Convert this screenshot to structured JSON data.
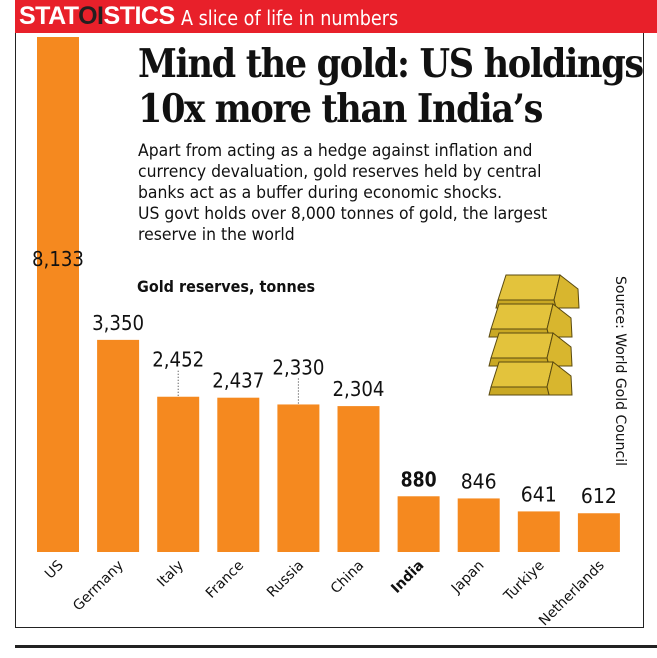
{
  "header": {
    "brand_part1": "STAT",
    "brand_part2": "OI",
    "brand_part3": "STICS",
    "tagline": "A slice of life in numbers"
  },
  "title_line1": "Mind the gold: US holdings",
  "title_line2": "10x more than India’s",
  "description": [
    "Apart from acting as a hedge against inflation and currency devaluation, gold reserves held by central banks act as a buffer during economic shocks.",
    "US govt holds over 8,000 tonnes of gold, the largest reserve in the world"
  ],
  "source": "Source: World Gold Council",
  "colors": {
    "header": "#e8202a",
    "bar": "#f5891f",
    "gold": "#e3c33c"
  },
  "chart_data": {
    "type": "bar",
    "title": "Gold reserves, tonnes",
    "categories": [
      "US",
      "Germany",
      "Italy",
      "France",
      "Russia",
      "China",
      "India",
      "Japan",
      "Turkiye",
      "Netherlands"
    ],
    "values": [
      8133,
      3350,
      2452,
      2437,
      2330,
      2304,
      880,
      846,
      641,
      612
    ],
    "value_labels": [
      "8,133",
      "3,350",
      "2,452",
      "2,437",
      "2,330",
      "2,304",
      "880",
      "846",
      "641",
      "612"
    ],
    "highlight": "India",
    "ylim": [
      0,
      8133
    ],
    "grid": false
  }
}
